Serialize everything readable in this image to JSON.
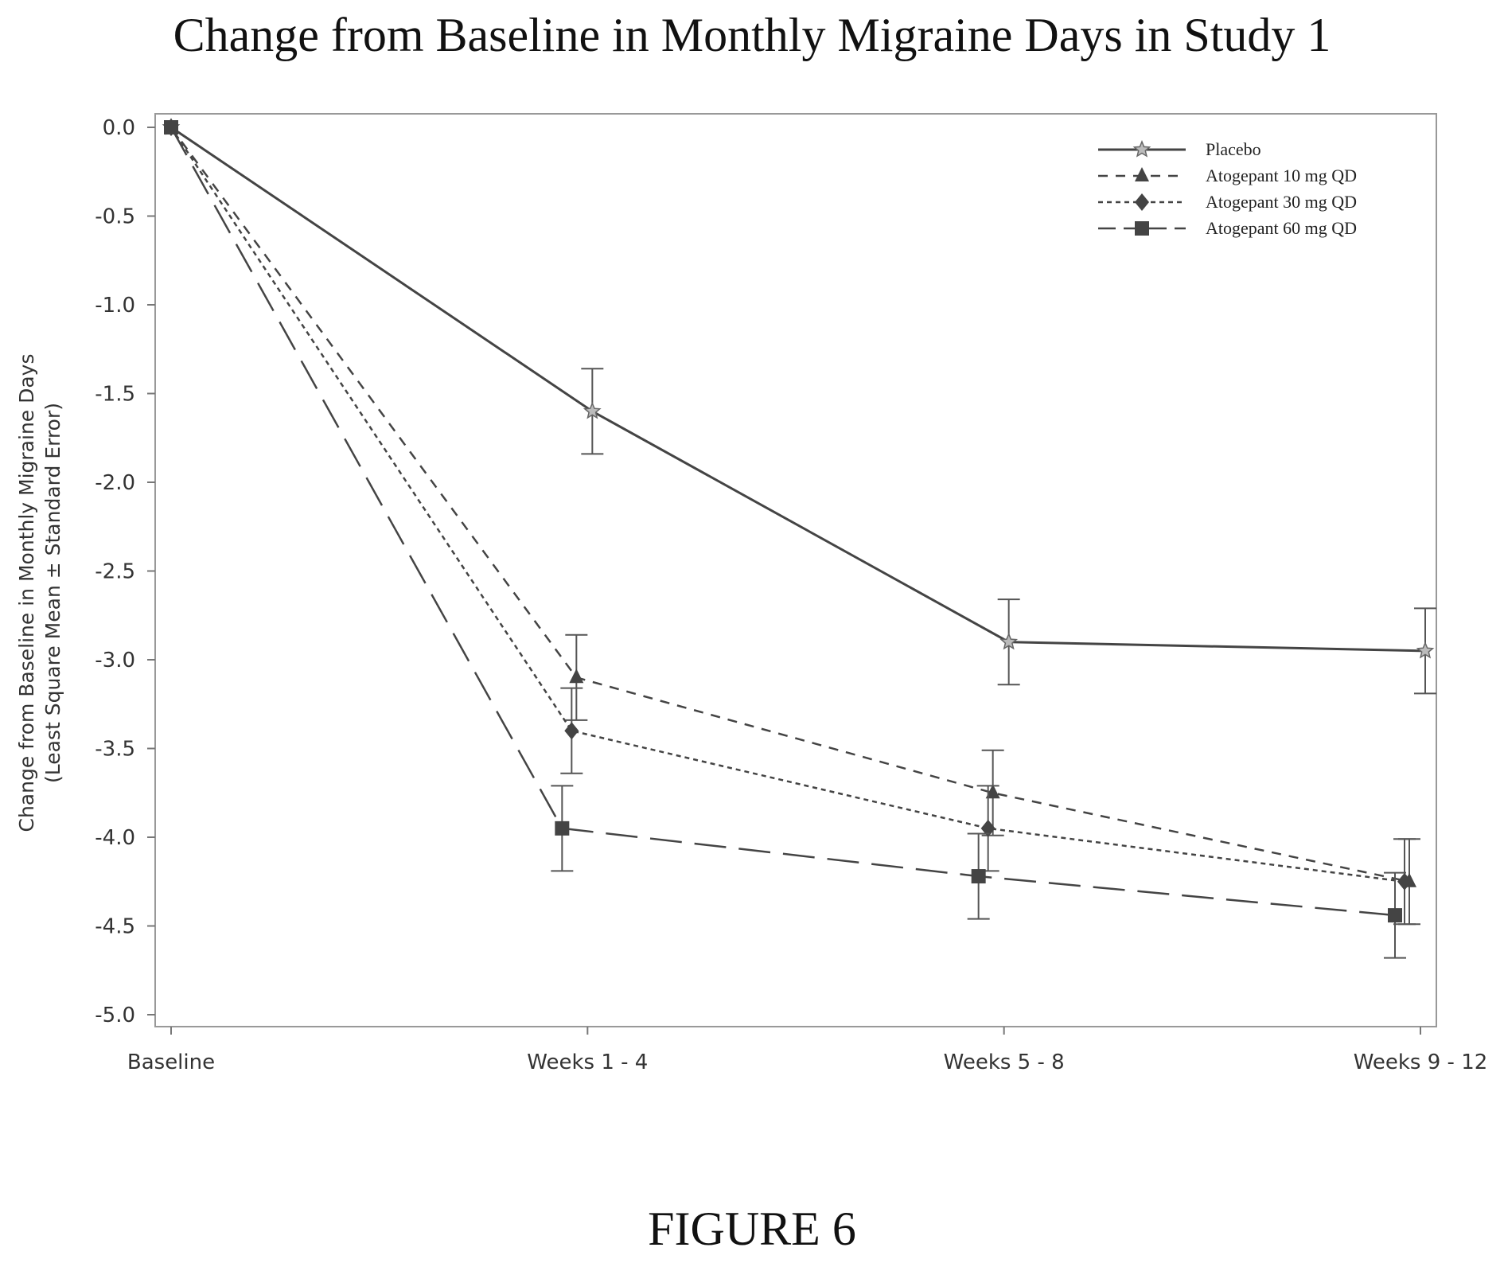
{
  "title": "Change from Baseline in Monthly Migraine Days in Study 1",
  "figure_label": "FIGURE 6",
  "chart_data": {
    "type": "line",
    "title": "Change from Baseline in Monthly Migraine Days in Study 1",
    "xlabel": "",
    "ylabel_line1": "Change from Baseline in Monthly Migraine Days",
    "ylabel_line2": "(Least Square Mean ± Standard Error)",
    "categories": [
      "Baseline",
      "Weeks 1 - 4",
      "Weeks 5 - 8",
      "Weeks 9 - 12"
    ],
    "ylim": [
      -5.0,
      0.0
    ],
    "y_ticks": [
      "0.0",
      "-0.5",
      "-1.0",
      "-1.5",
      "-2.0",
      "-2.5",
      "-3.0",
      "-3.5",
      "-4.0",
      "-4.5",
      "-5.0"
    ],
    "grid": false,
    "legend_position": "top-right",
    "series": [
      {
        "name": "Placebo",
        "values": [
          0.0,
          -1.6,
          -2.9,
          -2.95
        ],
        "errors": [
          0,
          0.24,
          0.24,
          0.24
        ],
        "dash": "",
        "marker": "star",
        "stroke_width": 3,
        "color": "#444444"
      },
      {
        "name": "Atogepant 10 mg QD",
        "values": [
          0.0,
          -3.1,
          -3.75,
          -4.25
        ],
        "errors": [
          0,
          0.24,
          0.24,
          0.24
        ],
        "dash": "12,10",
        "marker": "triangle",
        "stroke_width": 2.5,
        "color": "#444444"
      },
      {
        "name": "Atogepant 30 mg QD",
        "values": [
          0.0,
          -3.4,
          -3.95,
          -4.25
        ],
        "errors": [
          0,
          0.24,
          0.24,
          0.24
        ],
        "dash": "6,5",
        "marker": "diamond",
        "stroke_width": 2.5,
        "color": "#444444"
      },
      {
        "name": "Atogepant 60 mg QD",
        "values": [
          0.0,
          -3.95,
          -4.22,
          -4.44
        ],
        "errors": [
          0,
          0.24,
          0.24,
          0.24
        ],
        "dash": "40,16",
        "marker": "square",
        "stroke_width": 2.5,
        "color": "#444444"
      }
    ]
  }
}
